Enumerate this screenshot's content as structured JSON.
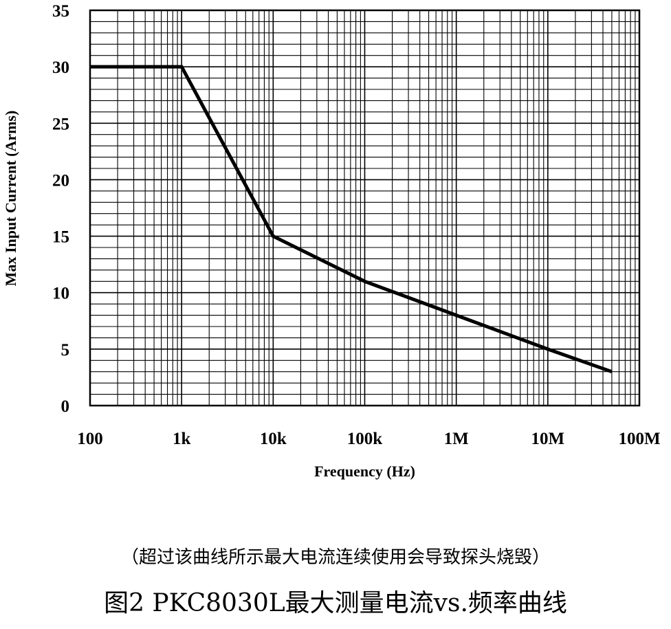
{
  "chart_data": {
    "type": "line",
    "xscale": "log",
    "xlim": [
      100,
      100000000
    ],
    "ylim": [
      0,
      35
    ],
    "grid": true,
    "xlabel": "Frequency (Hz)",
    "ylabel": "Max Input Current (Arms)",
    "x_tick_labels": [
      "100",
      "1k",
      "10k",
      "100k",
      "1M",
      "10M",
      "100M"
    ],
    "y_tick_labels": [
      "0",
      "5",
      "10",
      "15",
      "20",
      "25",
      "30",
      "35"
    ],
    "series": [
      {
        "x": [
          100,
          1000,
          10000,
          100000,
          1000000,
          10000000,
          50000000
        ],
        "y": [
          30,
          30,
          15,
          11,
          8,
          5,
          3
        ],
        "color": "#000000"
      }
    ]
  },
  "caption": {
    "note": "（超过该曲线所示最大电流连续使用会导致探头烧毁）",
    "title": "图2 PKC8030L最大测量电流vs.频率曲线"
  }
}
